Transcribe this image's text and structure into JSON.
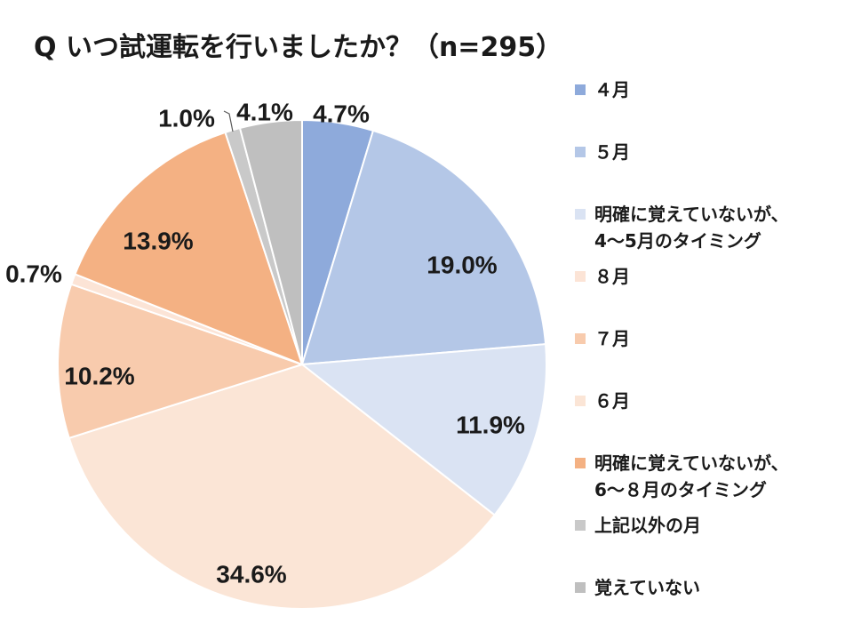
{
  "chart_data": {
    "type": "pie",
    "title": "Q いつ試運転を行いましたか？（n=295）",
    "start_angle_deg": 0,
    "direction": "clockwise",
    "slices": [
      {
        "label": "４月",
        "value": 4.7,
        "data_label": "4.7%",
        "color": "#8eaadb"
      },
      {
        "label": "５月",
        "value": 19.0,
        "data_label": "19.0%",
        "color": "#b4c7e7"
      },
      {
        "label": "明確に覚えていないが、\n4～5月のタイミング",
        "value": 11.9,
        "data_label": "11.9%",
        "color": "#dae3f3"
      },
      {
        "label": "６月",
        "value": 34.6,
        "data_label": "34.6%",
        "color": "#fbe5d6"
      },
      {
        "label": "７月",
        "value": 10.2,
        "data_label": "10.2%",
        "color": "#f8cbad"
      },
      {
        "label": "８月",
        "value": 0.7,
        "data_label": "0.7%",
        "color": "#fce4d6"
      },
      {
        "label": "明確に覚えていないが、\n6～８月のタイミング",
        "value": 13.9,
        "data_label": "13.9%",
        "color": "#f4b183"
      },
      {
        "label": "上記以外の月",
        "value": 1.0,
        "data_label": "1.0%",
        "color": "#c9c9c9"
      },
      {
        "label": "覚えていない",
        "value": 4.1,
        "data_label": "4.1%",
        "color": "#bfbfbf"
      }
    ],
    "legend_position": "right",
    "legend_order": [
      0,
      1,
      2,
      5,
      4,
      3,
      6,
      7,
      8
    ]
  }
}
